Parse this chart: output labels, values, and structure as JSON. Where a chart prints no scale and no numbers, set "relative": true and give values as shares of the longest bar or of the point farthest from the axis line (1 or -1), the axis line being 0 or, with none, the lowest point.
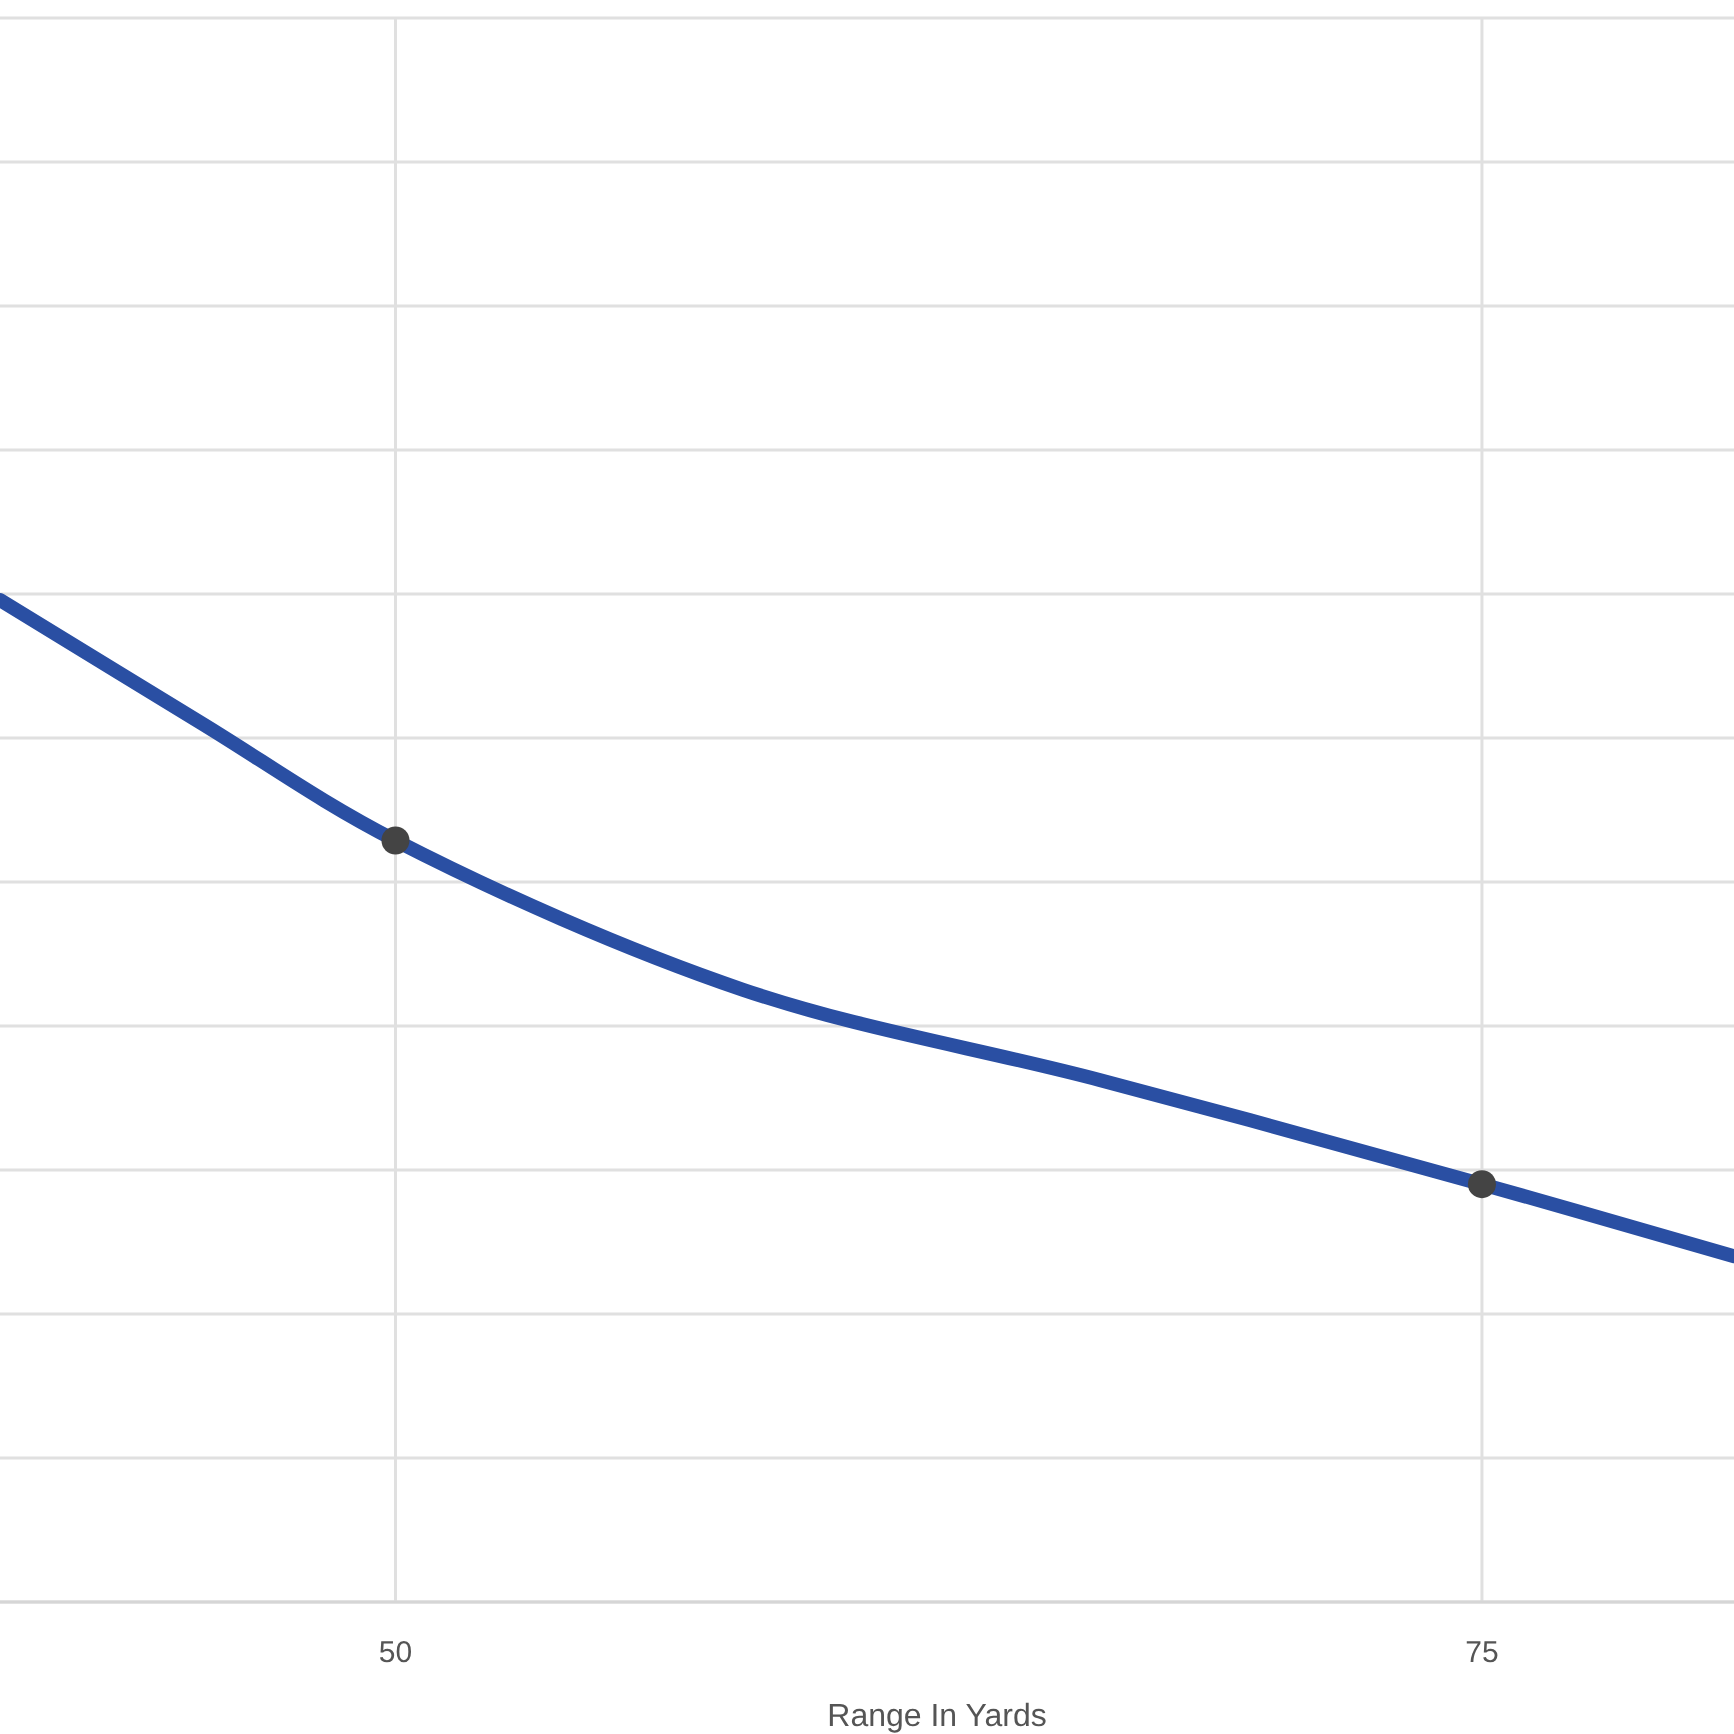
{
  "chart_data": {
    "type": "line",
    "xlabel": "Range In Yards",
    "relative": true,
    "xlim": [
      40.9,
      80.8
    ],
    "xticks": [
      50,
      75
    ],
    "grid": true,
    "series": [
      {
        "color": "#2a4fa3",
        "marker": "none",
        "x": [
          40.9,
          45.5,
          50,
          58,
          66.2,
          75,
          80.8
        ],
        "values": [
          1,
          0.878,
          0.76,
          0.611,
          0.521,
          0.417,
          0.345
        ]
      },
      {
        "type": "scatter",
        "color": "#444444",
        "marker": "circle",
        "x": [
          50,
          75
        ],
        "values": [
          0.76,
          0.417
        ]
      }
    ]
  }
}
